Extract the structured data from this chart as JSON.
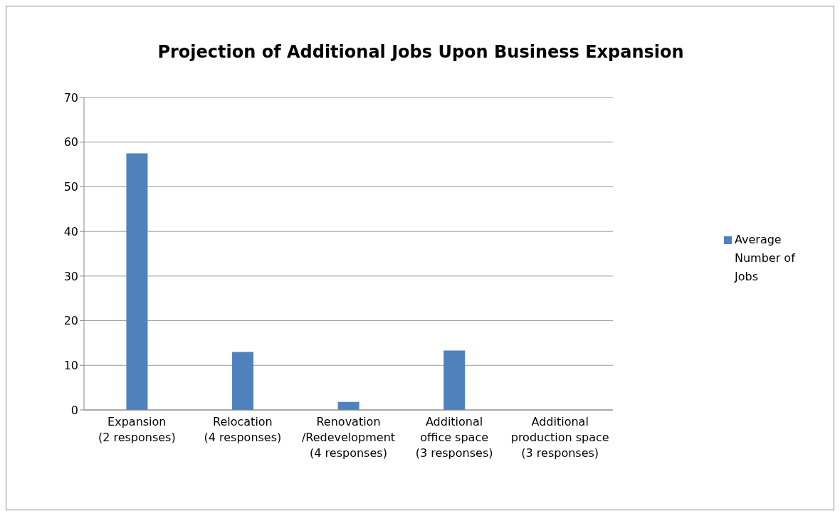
{
  "chart_data": {
    "type": "bar",
    "title": "Projection of Additional Jobs Upon Business Expansion",
    "categories": [
      "Expansion\n(2 responses)",
      "Relocation\n(4 responses)",
      "Renovation\n/Redevelopment\n(4 responses)",
      "Additional\noffice space\n(3 responses)",
      "Additional\nproduction space\n(3 responses)"
    ],
    "series": [
      {
        "name": "Average Number of Jobs",
        "color": "#4f81bd",
        "values": [
          57.5,
          13,
          1.8,
          13.3,
          0
        ]
      }
    ],
    "ylim": [
      0,
      70
    ],
    "yticks": [
      0,
      10,
      20,
      30,
      40,
      50,
      60,
      70
    ],
    "grid": "y",
    "legend": "right"
  }
}
